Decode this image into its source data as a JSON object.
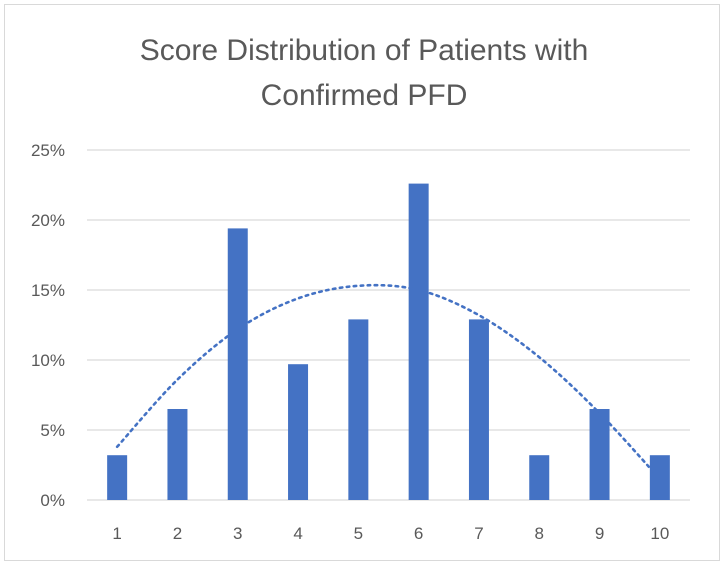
{
  "chart_data": {
    "type": "bar",
    "title_lines": [
      "Score Distribution of Patients with",
      "Confirmed PFD"
    ],
    "xlabel": "",
    "ylabel": "",
    "categories": [
      "1",
      "2",
      "3",
      "4",
      "5",
      "6",
      "7",
      "8",
      "9",
      "10"
    ],
    "values": [
      3.2,
      6.5,
      19.4,
      9.7,
      12.9,
      22.6,
      12.9,
      3.2,
      6.5,
      3.2
    ],
    "ylim": [
      0,
      25
    ],
    "yticks": [
      0,
      5,
      10,
      15,
      20,
      25
    ],
    "ytick_labels": [
      "0%",
      "5%",
      "10%",
      "15%",
      "20%",
      "25%"
    ],
    "grid": true,
    "legend": "none",
    "bar_color": "#4472c4",
    "trendline": {
      "type": "polynomial-dotted",
      "color": "#4472c4",
      "points": [
        {
          "x": "1",
          "y": 3.8
        },
        {
          "x": "2",
          "y": 8.6
        },
        {
          "x": "3",
          "y": 12.2
        },
        {
          "x": "4",
          "y": 14.4
        },
        {
          "x": "5",
          "y": 15.3
        },
        {
          "x": "6",
          "y": 15.0
        },
        {
          "x": "7",
          "y": 13.2
        },
        {
          "x": "8",
          "y": 10.2
        },
        {
          "x": "9",
          "y": 6.2
        },
        {
          "x": "10",
          "y": 1.5
        }
      ]
    }
  }
}
